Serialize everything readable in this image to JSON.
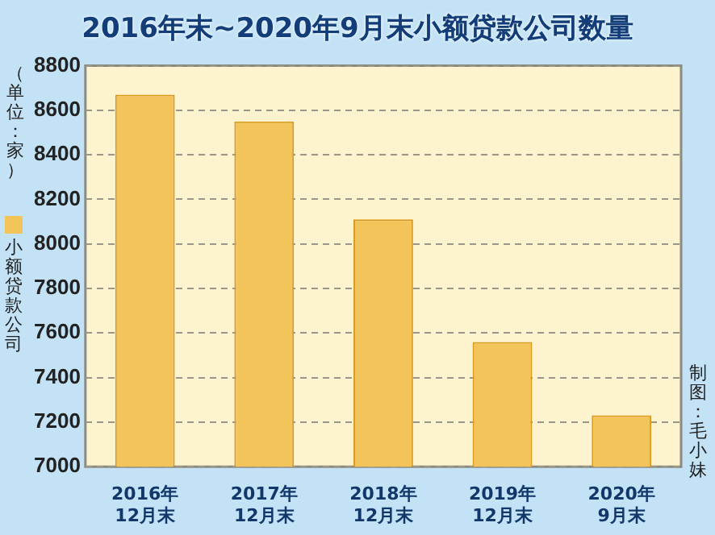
{
  "chart_data": {
    "type": "bar",
    "title": "2016年末~2020年9月末小额贷款公司数量",
    "ylabel": "（单位：家）",
    "categories": [
      "2016年\n12月末",
      "2017年\n12月末",
      "2018年\n12月末",
      "2019年\n12月末",
      "2020年\n9月末"
    ],
    "series": [
      {
        "name": "小额贷款公司",
        "color": "#f3c45a",
        "values": [
          8670,
          8550,
          8110,
          7560,
          7230
        ]
      }
    ],
    "ylim": [
      7000,
      8800
    ],
    "yticks": [
      7000,
      7200,
      7400,
      7600,
      7800,
      8000,
      8200,
      8400,
      8600,
      8800
    ],
    "grid": "y",
    "legend": "left",
    "annotations": [
      "制图：毛小妹"
    ]
  }
}
